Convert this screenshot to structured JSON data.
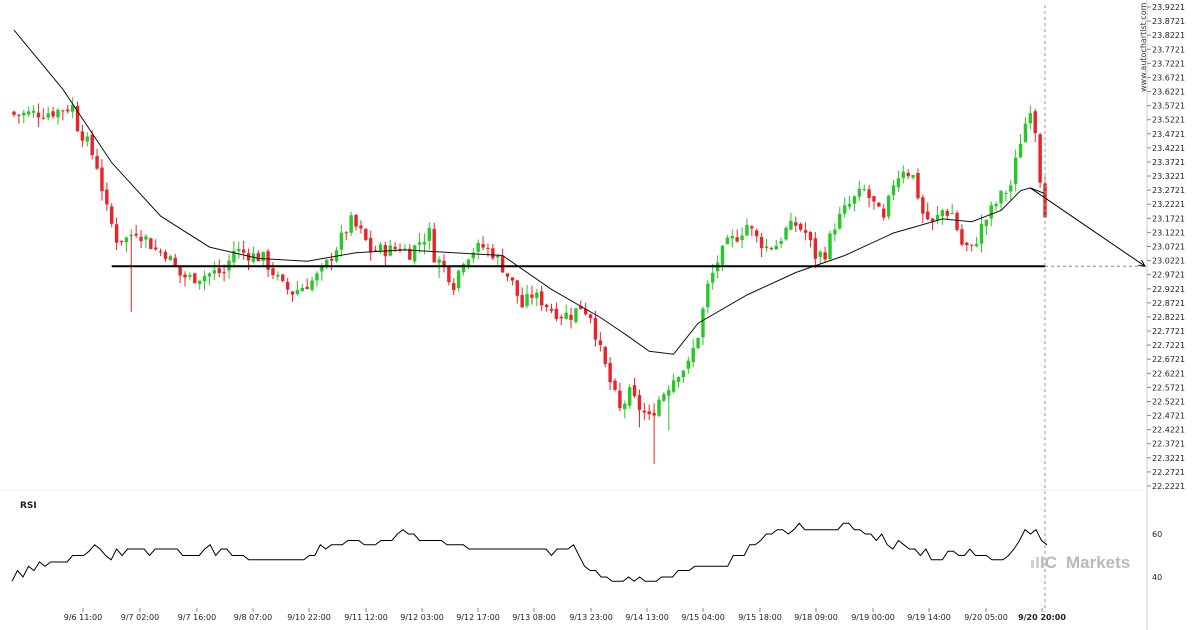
{
  "watermark": "www.autochartist.com",
  "brand": {
    "prefix": "IC",
    "name": "Markets"
  },
  "colors": {
    "up": "#27c827",
    "down": "#e8232a",
    "ma": "#111111",
    "level": "#000000",
    "rsi": "#000000"
  },
  "chart_data": [
    {
      "type": "candlestick",
      "title": "",
      "ylim": [
        22.2221,
        23.9221
      ],
      "y_ticks": [
        "23.9221",
        "23.8721",
        "23.8221",
        "23.7721",
        "23.7221",
        "23.6721",
        "23.6221",
        "23.5721",
        "23.5221",
        "23.4721",
        "23.4221",
        "23.3721",
        "23.3221",
        "23.2721",
        "23.2221",
        "23.1721",
        "23.1221",
        "23.0721",
        "23.0221",
        "22.9721",
        "22.9221",
        "22.8721",
        "22.8221",
        "22.7721",
        "22.7221",
        "22.6721",
        "22.6221",
        "22.5721",
        "22.5221",
        "22.4721",
        "22.4221",
        "22.3721",
        "22.3221",
        "22.2721",
        "22.2221"
      ],
      "x_ticks": [
        "9/6 11:00",
        "9/7 02:00",
        "9/7 16:00",
        "9/8 07:00",
        "9/10 22:00",
        "9/11 12:00",
        "9/12 03:00",
        "9/12 17:00",
        "9/13 08:00",
        "9/13 23:00",
        "9/14 13:00",
        "9/15 04:00",
        "9/15 18:00",
        "9/18 09:00",
        "9/19 00:00",
        "9/19 14:00",
        "9/20 05:00",
        "9/20 20:00"
      ],
      "x_ticks_bold": [
        "9/20 20:00"
      ],
      "close_path": [
        [
          0,
          23.54
        ],
        [
          8,
          23.55
        ],
        [
          12,
          23.57
        ],
        [
          13,
          23.5
        ],
        [
          15,
          23.44
        ],
        [
          17,
          23.36
        ],
        [
          19,
          23.2
        ],
        [
          21,
          23.1
        ],
        [
          23,
          23.1
        ],
        [
          25,
          23.13
        ],
        [
          27,
          23.1
        ],
        [
          29,
          23.06
        ],
        [
          31,
          23.05
        ],
        [
          34,
          22.97
        ],
        [
          36,
          22.96
        ],
        [
          39,
          22.97
        ],
        [
          41,
          22.98
        ],
        [
          43,
          22.98
        ],
        [
          45,
          23.06
        ],
        [
          47,
          23.05
        ],
        [
          49,
          23.04
        ],
        [
          51,
          23.03
        ],
        [
          53,
          22.98
        ],
        [
          55,
          22.93
        ],
        [
          57,
          22.91
        ],
        [
          59,
          22.93
        ],
        [
          61,
          22.95
        ],
        [
          63,
          22.98
        ],
        [
          65,
          23.04
        ],
        [
          67,
          23.1
        ],
        [
          69,
          23.16
        ],
        [
          71,
          23.12
        ],
        [
          73,
          23.06
        ],
        [
          75,
          23.06
        ],
        [
          77,
          23.06
        ],
        [
          79,
          23.07
        ],
        [
          81,
          23.05
        ],
        [
          83,
          23.09
        ],
        [
          85,
          23.12
        ],
        [
          86,
          23.04
        ],
        [
          88,
          23.0
        ],
        [
          90,
          22.94
        ],
        [
          92,
          23.03
        ],
        [
          94,
          23.06
        ],
        [
          96,
          23.07
        ],
        [
          98,
          23.05
        ],
        [
          100,
          23.0
        ],
        [
          102,
          22.94
        ],
        [
          104,
          22.86
        ],
        [
          106,
          22.9
        ],
        [
          108,
          22.88
        ],
        [
          110,
          22.85
        ],
        [
          112,
          22.83
        ],
        [
          114,
          22.83
        ],
        [
          116,
          22.86
        ],
        [
          118,
          22.83
        ],
        [
          120,
          22.7
        ],
        [
          122,
          22.59
        ],
        [
          124,
          22.49
        ],
        [
          126,
          22.55
        ],
        [
          128,
          22.5
        ],
        [
          130,
          22.46
        ],
        [
          132,
          22.53
        ],
        [
          134,
          22.58
        ],
        [
          136,
          22.63
        ],
        [
          138,
          22.65
        ],
        [
          140,
          22.76
        ],
        [
          142,
          22.93
        ],
        [
          144,
          23.02
        ],
        [
          146,
          23.08
        ],
        [
          148,
          23.11
        ],
        [
          150,
          23.15
        ],
        [
          152,
          23.1
        ],
        [
          154,
          23.07
        ],
        [
          156,
          23.08
        ],
        [
          158,
          23.13
        ],
        [
          160,
          23.15
        ],
        [
          162,
          23.12
        ],
        [
          164,
          23.04
        ],
        [
          166,
          23.05
        ],
        [
          168,
          23.15
        ],
        [
          170,
          23.2
        ],
        [
          172,
          23.24
        ],
        [
          174,
          23.27
        ],
        [
          176,
          23.22
        ],
        [
          178,
          23.16
        ],
        [
          180,
          23.3
        ],
        [
          182,
          23.35
        ],
        [
          184,
          23.32
        ],
        [
          186,
          23.19
        ],
        [
          188,
          23.15
        ],
        [
          190,
          23.2
        ],
        [
          192,
          23.19
        ],
        [
          194,
          23.08
        ],
        [
          196,
          23.06
        ],
        [
          198,
          23.14
        ],
        [
          200,
          23.2
        ],
        [
          202,
          23.25
        ],
        [
          204,
          23.29
        ],
        [
          206,
          23.45
        ],
        [
          208,
          23.57
        ],
        [
          209,
          23.49
        ],
        [
          210,
          23.32
        ],
        [
          211,
          23.2
        ]
      ],
      "candle_count": 212,
      "moving_average": [
        [
          0,
          23.84
        ],
        [
          10,
          23.63
        ],
        [
          20,
          23.37
        ],
        [
          30,
          23.18
        ],
        [
          40,
          23.07
        ],
        [
          50,
          23.03
        ],
        [
          60,
          23.02
        ],
        [
          70,
          23.05
        ],
        [
          80,
          23.06
        ],
        [
          90,
          23.05
        ],
        [
          100,
          23.04
        ],
        [
          110,
          22.92
        ],
        [
          120,
          22.82
        ],
        [
          126,
          22.75
        ],
        [
          130,
          22.7
        ],
        [
          135,
          22.69
        ],
        [
          140,
          22.8
        ],
        [
          150,
          22.9
        ],
        [
          160,
          22.98
        ],
        [
          170,
          23.04
        ],
        [
          180,
          23.12
        ],
        [
          186,
          23.15
        ],
        [
          190,
          23.17
        ],
        [
          196,
          23.16
        ],
        [
          202,
          23.2
        ],
        [
          206,
          23.27
        ],
        [
          208,
          23.28
        ],
        [
          211,
          23.26
        ]
      ],
      "support_level": 23.0021,
      "projection": {
        "from": [
          208,
          23.28
        ],
        "to_label_x": "9/20 20:00",
        "to_value": 23.0021
      }
    },
    {
      "type": "line",
      "title": "RSI",
      "ylim": [
        30,
        75
      ],
      "y_ticks": [
        "60",
        "40"
      ],
      "values": [
        38,
        43,
        40,
        45,
        43,
        47,
        45,
        47,
        47,
        47,
        47,
        50,
        50,
        50,
        52,
        55,
        53,
        50,
        48,
        53,
        50,
        53,
        53,
        53,
        53,
        50,
        53,
        53,
        53,
        53,
        53,
        50,
        50,
        50,
        50,
        53,
        55,
        50,
        53,
        53,
        50,
        50,
        50,
        48,
        48,
        48,
        48,
        48,
        48,
        48,
        48,
        48,
        48,
        48,
        50,
        50,
        55,
        53,
        55,
        55,
        55,
        57,
        57,
        57,
        55,
        55,
        55,
        57,
        57,
        57,
        60,
        62,
        60,
        60,
        57,
        57,
        57,
        57,
        57,
        55,
        55,
        55,
        55,
        53,
        53,
        53,
        53,
        53,
        53,
        53,
        53,
        53,
        53,
        53,
        53,
        53,
        53,
        53,
        50,
        53,
        53,
        53,
        55,
        50,
        45,
        43,
        43,
        40,
        40,
        38,
        38,
        38,
        40,
        38,
        40,
        38,
        38,
        38,
        40,
        40,
        40,
        43,
        43,
        43,
        45,
        45,
        45,
        45,
        45,
        45,
        45,
        50,
        50,
        50,
        55,
        55,
        57,
        60,
        60,
        62,
        62,
        60,
        62,
        65,
        62,
        62,
        62,
        62,
        62,
        62,
        62,
        65,
        65,
        62,
        62,
        60,
        60,
        57,
        60,
        55,
        53,
        57,
        55,
        53,
        53,
        50,
        53,
        48,
        48,
        48,
        52,
        52,
        50,
        50,
        53,
        50,
        50,
        50,
        48,
        48,
        48,
        50,
        53,
        57,
        62,
        60,
        62,
        57,
        55
      ]
    }
  ]
}
